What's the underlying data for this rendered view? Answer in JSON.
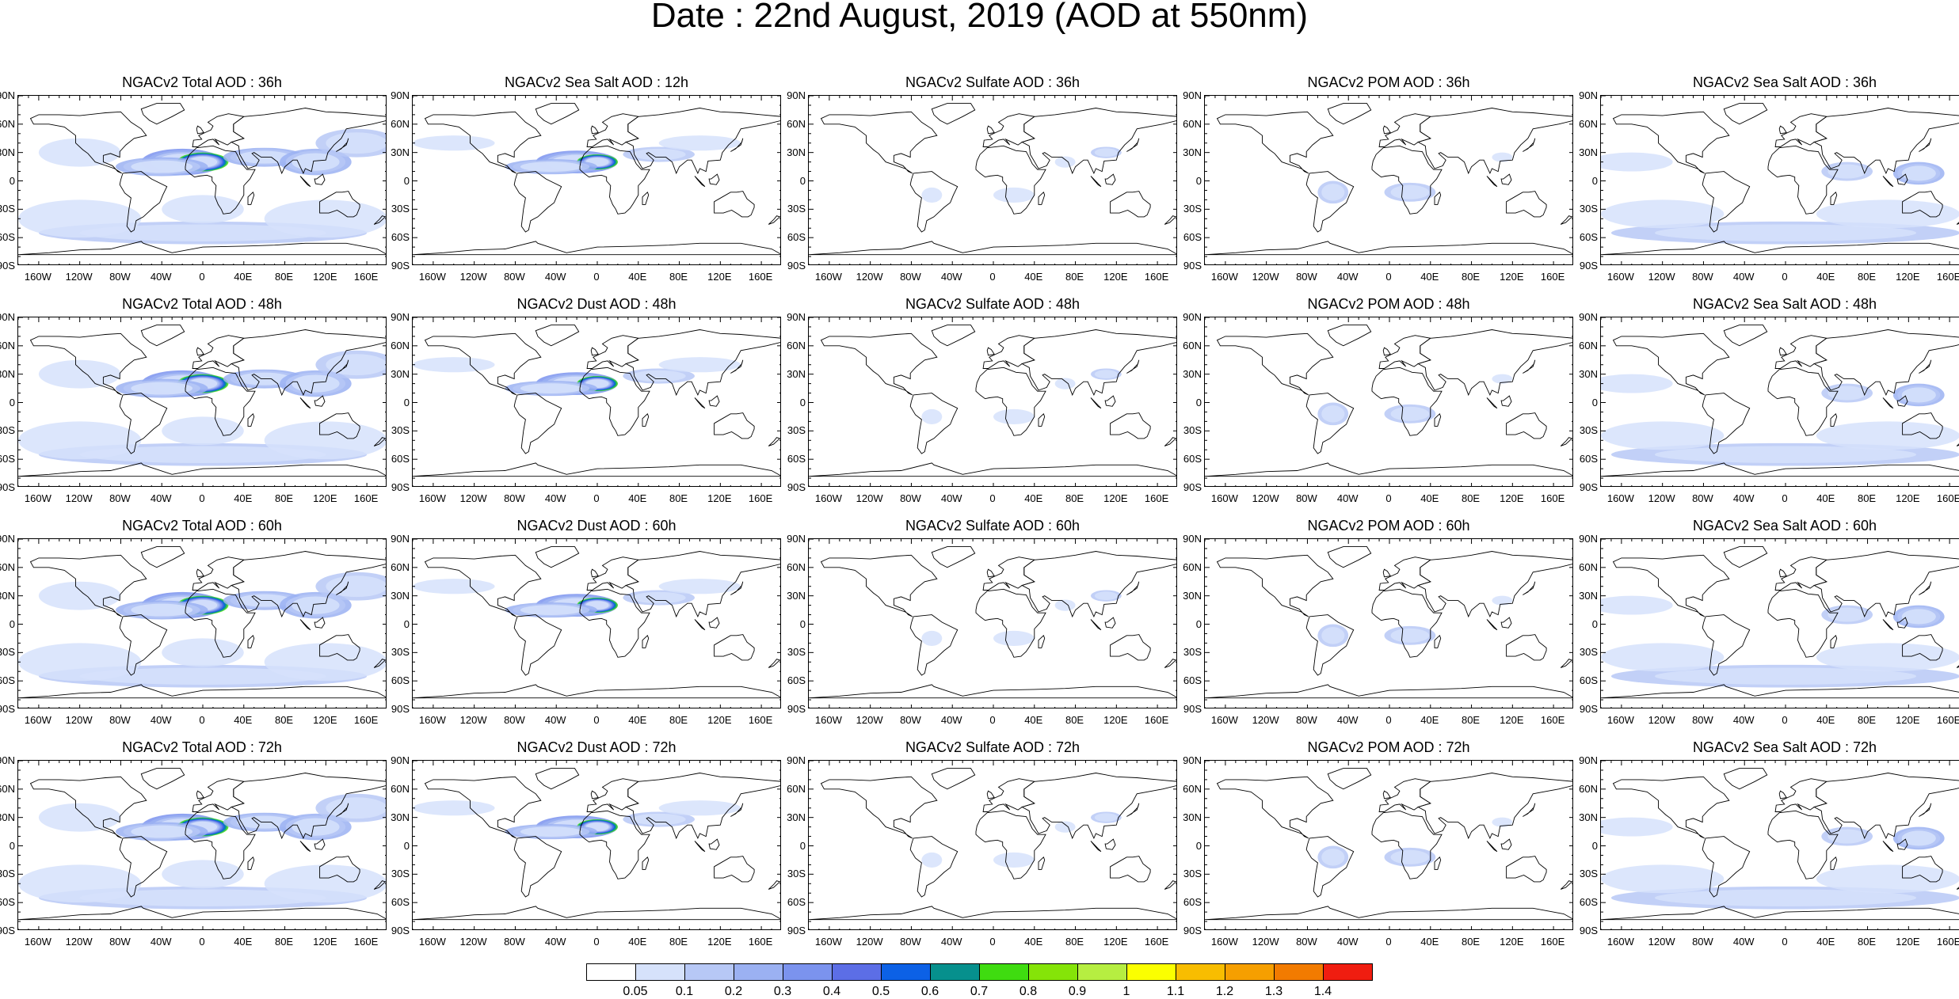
{
  "title": "Date : 22nd August, 2019 (AOD at 550nm)",
  "panels": [
    [
      "NGACv2 Total AOD : 36h",
      "NGACv2 Sea Salt  AOD : 12h",
      "NGACv2 Sulfate AOD : 36h",
      "NGACv2 POM AOD : 36h",
      "NGACv2 Sea Salt AOD : 36h"
    ],
    [
      "NGACv2 Total AOD : 48h",
      "NGACv2 Dust AOD : 48h",
      "NGACv2 Sulfate AOD : 48h",
      "NGACv2 POM AOD : 48h",
      "NGACv2 Sea Salt AOD : 48h"
    ],
    [
      "NGACv2 Total AOD : 60h",
      "NGACv2 Dust AOD : 60h",
      "NGACv2 Sulfate AOD : 60h",
      "NGACv2 POM AOD : 60h",
      "NGACv2 Sea Salt AOD : 60h"
    ],
    [
      "NGACv2 Total AOD : 72h",
      "NGACv2 Dust AOD : 72h",
      "NGACv2 Sulfate AOD : 72h",
      "NGACv2 POM AOD : 72h",
      "NGACv2 Sea Salt  AOD : 72h"
    ]
  ],
  "lat_labels": [
    "90N",
    "60N",
    "30N",
    "0",
    "30S",
    "60S",
    "90S"
  ],
  "lon_labels": [
    "160W",
    "120W",
    "80W",
    "40W",
    "0",
    "40E",
    "80E",
    "120E",
    "160E"
  ],
  "colorbar": {
    "labels": [
      "0.05",
      "0.1",
      "0.2",
      "0.3",
      "0.4",
      "0.5",
      "0.6",
      "0.7",
      "0.8",
      "0.9",
      "1",
      "1.1",
      "1.2",
      "1.3",
      "1.4"
    ],
    "colors": [
      "#ffffff",
      "#d6e2fb",
      "#b7c8f6",
      "#9bb1f2",
      "#7b93ee",
      "#5c6ee6",
      "#0c61e6",
      "#06908d",
      "#3fdc10",
      "#85e408",
      "#b6ee41",
      "#fbff00",
      "#f8bd00",
      "#f69f00",
      "#f27b00",
      "#f01d10"
    ]
  }
}
